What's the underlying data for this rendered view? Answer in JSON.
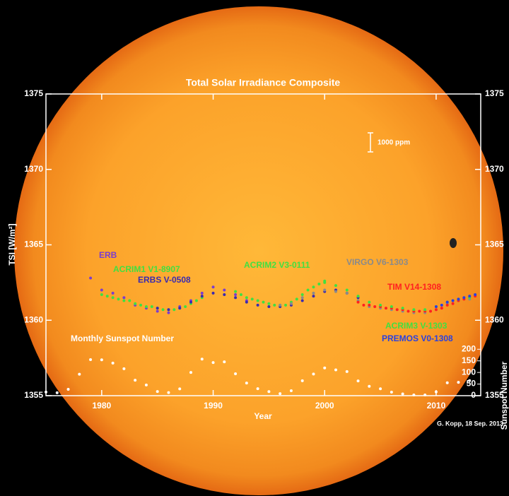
{
  "chart_data": {
    "type": "scatter",
    "title": "Total Solar Irradiance Composite",
    "x_label": "Year",
    "y_label": "TSI [W/m²]",
    "y2_label": "Sunspot Number",
    "xlim": [
      1975,
      2014
    ],
    "xticks": [
      1980,
      1990,
      2000,
      2010
    ],
    "ylim": [
      1355,
      1375
    ],
    "yticks": [
      1355,
      1360,
      1365,
      1370,
      1375
    ],
    "y2lim": [
      0,
      1300
    ],
    "y2ticks": [
      0,
      50,
      100,
      150,
      200
    ],
    "annotations": [
      "1000 ppm",
      "Monthly Sunspot Number",
      "G. Kopp, 18 Sep. 2013"
    ],
    "series": [
      {
        "name": "ERB",
        "color": "#7a3cd0",
        "x": [
          1979,
          1980,
          1981,
          1982,
          1983,
          1984,
          1985,
          1986,
          1987,
          1988,
          1989,
          1990,
          1991,
          1992,
          1993
        ],
        "values": [
          1362.8,
          1362.0,
          1361.8,
          1361.5,
          1361.0,
          1360.8,
          1360.6,
          1360.5,
          1360.9,
          1361.3,
          1361.8,
          1362.2,
          1362.0,
          1361.7,
          1361.3
        ]
      },
      {
        "name": "ACRIM1 V1-8907",
        "color": "#40e040",
        "x": [
          1980,
          1980.5,
          1981,
          1981.5,
          1982,
          1982.5,
          1983,
          1983.5,
          1984,
          1984.5,
          1985,
          1985.5,
          1986,
          1986.5,
          1987,
          1987.5,
          1988,
          1988.5,
          1989
        ],
        "values": [
          1361.7,
          1361.6,
          1361.5,
          1361.4,
          1361.3,
          1361.3,
          1361.1,
          1361.0,
          1360.9,
          1360.9,
          1360.8,
          1360.7,
          1360.7,
          1360.7,
          1360.8,
          1360.9,
          1361.1,
          1361.3,
          1361.5
        ]
      },
      {
        "name": "ERBS V-0508",
        "color": "#3a2ab0",
        "x": [
          1985,
          1986,
          1987,
          1988,
          1989,
          1990,
          1991,
          1992,
          1993,
          1994,
          1995,
          1996,
          1997,
          1998,
          1999,
          2000,
          2001,
          2002,
          2003
        ],
        "values": [
          1360.8,
          1360.7,
          1360.8,
          1361.2,
          1361.6,
          1361.8,
          1361.7,
          1361.5,
          1361.2,
          1361.0,
          1360.9,
          1360.9,
          1361.0,
          1361.3,
          1361.6,
          1361.9,
          1362.0,
          1361.8,
          1361.5
        ]
      },
      {
        "name": "ACRIM2 V3-0111",
        "color": "#40e040",
        "x": [
          1992,
          1992.5,
          1993,
          1993.5,
          1994,
          1994.5,
          1995,
          1995.5,
          1996,
          1996.5,
          1997,
          1997.5,
          1998,
          1998.5,
          1999,
          1999.5,
          2000
        ],
        "values": [
          1361.9,
          1361.7,
          1361.5,
          1361.4,
          1361.3,
          1361.2,
          1361.1,
          1361.0,
          1361.0,
          1361.0,
          1361.2,
          1361.4,
          1361.7,
          1362.0,
          1362.2,
          1362.4,
          1362.6
        ]
      },
      {
        "name": "VIRGO V6-1303",
        "color": "#8a8a8a",
        "x": [
          1996,
          1997,
          1998,
          1999,
          2000,
          2001,
          2002,
          2003,
          2004,
          2005,
          2006,
          2007,
          2008,
          2009,
          2010,
          2011,
          2012,
          2013
        ],
        "values": [
          1361.0,
          1361.1,
          1361.5,
          1361.8,
          1362.0,
          1361.9,
          1361.8,
          1361.3,
          1360.9,
          1360.8,
          1360.7,
          1360.6,
          1360.5,
          1360.5,
          1360.7,
          1361.1,
          1361.3,
          1361.4
        ]
      },
      {
        "name": "TIM V14-1308",
        "color": "#ff2020",
        "x": [
          2003,
          2003.5,
          2004,
          2004.5,
          2005,
          2005.5,
          2006,
          2006.5,
          2007,
          2007.5,
          2008,
          2008.5,
          2009,
          2009.5,
          2010,
          2010.5,
          2011,
          2011.5,
          2012,
          2012.5,
          2013,
          2013.5
        ],
        "values": [
          1361.2,
          1361.0,
          1361.0,
          1360.9,
          1360.9,
          1360.8,
          1360.8,
          1360.7,
          1360.7,
          1360.6,
          1360.6,
          1360.6,
          1360.6,
          1360.6,
          1360.7,
          1360.8,
          1361.0,
          1361.1,
          1361.3,
          1361.4,
          1361.5,
          1361.6
        ]
      },
      {
        "name": "ACRIM3 V-1303",
        "color": "#40e040",
        "x": [
          2000,
          2001,
          2002,
          2003,
          2004,
          2005,
          2006,
          2007,
          2008,
          2009,
          2010,
          2011,
          2012,
          2013
        ],
        "values": [
          1362.5,
          1362.3,
          1362.0,
          1361.6,
          1361.2,
          1361.0,
          1360.9,
          1360.8,
          1360.7,
          1360.7,
          1360.9,
          1361.2,
          1361.4,
          1361.5
        ]
      },
      {
        "name": "PREMOS V0-1308",
        "color": "#2a40e0",
        "x": [
          2010,
          2010.5,
          2011,
          2011.5,
          2012,
          2012.5,
          2013,
          2013.5
        ],
        "values": [
          1360.9,
          1361.0,
          1361.2,
          1361.3,
          1361.4,
          1361.5,
          1361.6,
          1361.7
        ]
      },
      {
        "name": "Monthly Sunspot Number",
        "color": "#ffffff",
        "axis": "y2",
        "x": [
          1975,
          1976,
          1977,
          1978,
          1979,
          1980,
          1981,
          1982,
          1983,
          1984,
          1985,
          1986,
          1987,
          1988,
          1989,
          1990,
          1991,
          1992,
          1993,
          1994,
          1995,
          1996,
          1997,
          1998,
          1999,
          2000,
          2001,
          2002,
          2003,
          2004,
          2005,
          2006,
          2007,
          2008,
          2009,
          2010,
          2011,
          2012,
          2013
        ],
        "values": [
          15.5,
          12.6,
          27.5,
          92.5,
          155.4,
          154.6,
          140.4,
          115.9,
          66.6,
          45.9,
          17.9,
          13.4,
          29.4,
          100.2,
          157.6,
          142.6,
          145.7,
          94.3,
          54.6,
          29.9,
          17.5,
          8.6,
          21.5,
          64.3,
          93.3,
          119.6,
          111.0,
          104.0,
          63.7,
          40.4,
          29.8,
          15.2,
          7.5,
          2.9,
          3.1,
          16.5,
          55.7,
          57.6,
          64.7
        ]
      }
    ]
  }
}
